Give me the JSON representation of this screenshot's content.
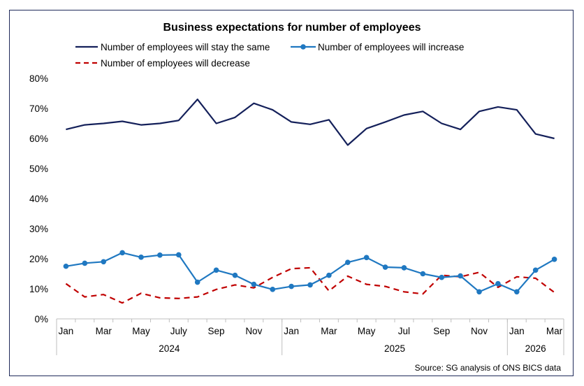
{
  "chart_data": {
    "type": "line",
    "title": "Business expectations for number of employees",
    "source": "Source: SG analysis of ONS BICS data",
    "ylim": [
      0,
      80
    ],
    "y_ticks": [
      0,
      10,
      20,
      30,
      40,
      50,
      60,
      70,
      80
    ],
    "y_tick_labels": [
      "0%",
      "10%",
      "20%",
      "30%",
      "40%",
      "50%",
      "60%",
      "70%",
      "80%"
    ],
    "x_tick_labels": [
      "Jan",
      "Mar",
      "May",
      "July",
      "Sep",
      "Nov",
      "Jan",
      "Mar",
      "May",
      "Jul",
      "Sep",
      "Nov",
      "Jan",
      "Mar"
    ],
    "x_tick_positions": [
      0,
      2,
      4,
      6,
      8,
      10,
      12,
      14,
      16,
      18,
      20,
      22,
      24,
      26
    ],
    "year_labels": [
      {
        "label": "2024",
        "start": 0,
        "end": 11
      },
      {
        "label": "2025",
        "start": 12,
        "end": 23
      },
      {
        "label": "2026",
        "start": 24,
        "end": 26
      }
    ],
    "grid": false,
    "legend_position": "top",
    "series": [
      {
        "name": "Number of employees will stay the same",
        "color": "#14205a",
        "style": "solid",
        "markers": false,
        "values": [
          63.0,
          64.5,
          65.0,
          65.7,
          64.5,
          65.0,
          66.0,
          73.0,
          65.0,
          67.0,
          71.7,
          69.5,
          65.5,
          64.7,
          66.2,
          57.8,
          63.3,
          65.5,
          67.8,
          69.0,
          65.0,
          63.0,
          69.0,
          70.5,
          69.5,
          61.5,
          60.0
        ]
      },
      {
        "name": "Number of employees will increase",
        "color": "#1f78c1",
        "style": "solid",
        "markers": true,
        "values": [
          17.5,
          18.5,
          19.0,
          22.0,
          20.5,
          21.2,
          21.3,
          12.2,
          16.2,
          14.5,
          11.5,
          9.8,
          10.8,
          11.3,
          14.5,
          18.8,
          20.4,
          17.2,
          17.0,
          15.0,
          13.8,
          14.3,
          9.0,
          11.7,
          9.0,
          16.2,
          19.8
        ]
      },
      {
        "name": "Number of employees will decrease",
        "color": "#c00000",
        "style": "dashed",
        "markers": false,
        "values": [
          11.7,
          7.3,
          8.1,
          5.3,
          8.5,
          7.0,
          6.8,
          7.3,
          9.8,
          11.3,
          10.3,
          13.8,
          16.7,
          17.0,
          9.3,
          14.2,
          11.5,
          10.8,
          9.0,
          8.3,
          14.5,
          14.0,
          15.5,
          10.5,
          14.0,
          13.5,
          8.8
        ]
      }
    ]
  }
}
